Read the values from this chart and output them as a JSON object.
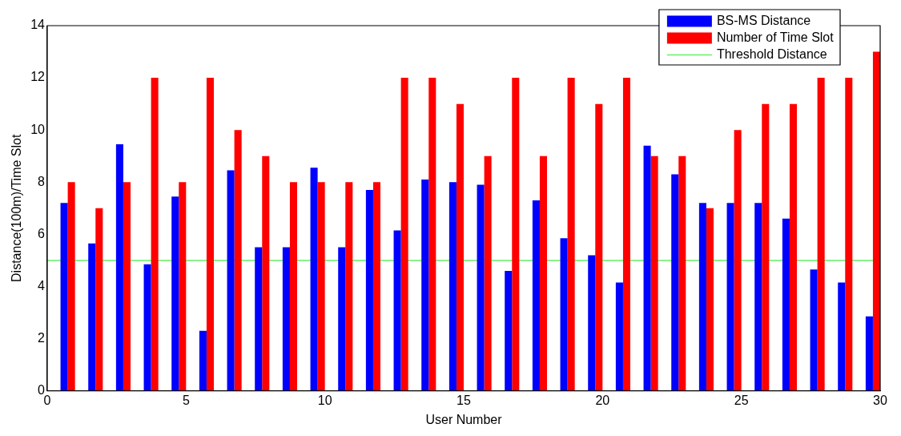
{
  "chart_data": {
    "type": "bar",
    "xlabel": "User Number",
    "ylabel": "Distance(100m)/Time Slot",
    "x": [
      1,
      2,
      3,
      4,
      5,
      6,
      7,
      8,
      9,
      10,
      11,
      12,
      13,
      14,
      15,
      16,
      17,
      18,
      19,
      20,
      21,
      22,
      23,
      24,
      25,
      26,
      27,
      28,
      29,
      30
    ],
    "series": [
      {
        "name": "BS-MS Distance",
        "color": "#0000ff",
        "values": [
          7.2,
          5.65,
          9.45,
          4.85,
          7.45,
          2.3,
          8.45,
          5.5,
          5.5,
          8.55,
          5.5,
          7.7,
          6.15,
          8.1,
          8.0,
          7.9,
          4.6,
          7.3,
          5.85,
          5.2,
          4.15,
          9.4,
          8.3,
          7.2,
          7.2,
          7.2,
          6.6,
          4.65,
          4.15,
          2.85
        ]
      },
      {
        "name": "Number of Time Slot",
        "color": "#ff0000",
        "values": [
          8,
          7,
          8,
          12,
          8,
          12,
          10,
          9,
          8,
          8,
          8,
          8,
          12,
          12,
          11,
          9,
          12,
          9,
          12,
          11,
          12,
          9,
          9,
          7,
          10,
          11,
          11,
          12,
          12,
          13
        ]
      }
    ],
    "ref_lines": [
      {
        "axis": "y",
        "value": 5,
        "label": "Threshold Distance",
        "color": "#66ee66"
      }
    ],
    "xlim": [
      0,
      30
    ],
    "xticks": [
      0,
      5,
      10,
      15,
      20,
      25,
      30
    ],
    "ylim": [
      0,
      14
    ],
    "yticks": [
      0,
      2,
      4,
      6,
      8,
      10,
      12,
      14
    ],
    "grid": false,
    "legend": "top right"
  }
}
